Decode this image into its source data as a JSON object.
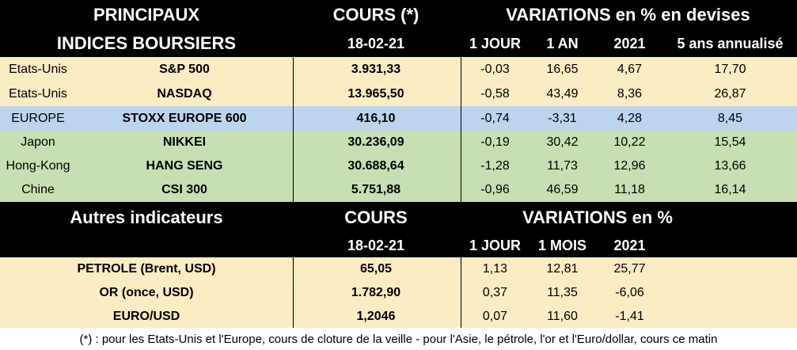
{
  "header1": {
    "line1_left": "PRINCIPAUX",
    "line2_left": "INDICES BOURSIERS",
    "cours": "COURS (*)",
    "date": "18-02-21",
    "variations": "VARIATIONS en % en devises",
    "cols": [
      "1 JOUR",
      "1 AN",
      "2021",
      "5 ans annualisé"
    ]
  },
  "indices": [
    {
      "region": "Etats-Unis",
      "name": "S&P 500",
      "cours": "3.931,33",
      "j1": "-0,03",
      "an1": "16,65",
      "y2021": "4,67",
      "a5": "17,70"
    },
    {
      "region": "Etats-Unis",
      "name": "NASDAQ",
      "cours": "13.965,50",
      "j1": "-0,58",
      "an1": "43,49",
      "y2021": "8,36",
      "a5": "26,87"
    },
    {
      "region": "EUROPE",
      "name": "STOXX EUROPE 600",
      "cours": "416,10",
      "j1": "-0,74",
      "an1": "-3,31",
      "y2021": "4,28",
      "a5": "8,45"
    },
    {
      "region": "Japon",
      "name": "NIKKEI",
      "cours": "30.236,09",
      "j1": "-0,19",
      "an1": "30,42",
      "y2021": "10,22",
      "a5": "15,54"
    },
    {
      "region": "Hong-Kong",
      "name": "HANG SENG",
      "cours": "30.688,64",
      "j1": "-1,28",
      "an1": "11,73",
      "y2021": "12,96",
      "a5": "13,66"
    },
    {
      "region": "Chine",
      "name": "CSI 300",
      "cours": "5.751,88",
      "j1": "-0,96",
      "an1": "46,59",
      "y2021": "11,18",
      "a5": "16,14"
    }
  ],
  "header2": {
    "left": "Autres indicateurs",
    "cours": "COURS",
    "variations": "VARIATIONS en %",
    "date": "18-02-21",
    "cols": [
      "1 JOUR",
      "1 MOIS",
      "2021"
    ]
  },
  "autres": [
    {
      "name": "PETROLE (Brent, USD)",
      "cours": "65,05",
      "j1": "1,13",
      "m1": "12,81",
      "y2021": "25,77"
    },
    {
      "name": "OR (once, USD)",
      "cours": "1.782,90",
      "j1": "0,37",
      "m1": "11,35",
      "y2021": "-6,06"
    },
    {
      "name": "EURO/USD",
      "cours": "1,2046",
      "j1": "0,07",
      "m1": "11,60",
      "y2021": "-1,41"
    }
  ],
  "footnote": "(*) : pour les Etats-Unis et l'Europe, cours de cloture de la veille - pour l'Asie, le pétrole, l'or et l'Euro/dollar, cours ce matin"
}
